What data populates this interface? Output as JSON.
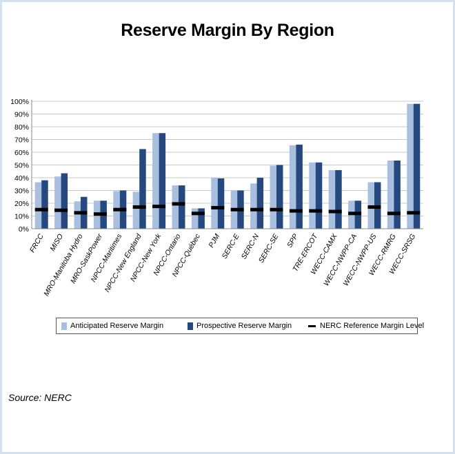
{
  "chart_data": {
    "type": "bar",
    "title": "Reserve Margin By Region",
    "xlabel": "",
    "ylabel": "",
    "ylim": [
      0,
      100
    ],
    "y_ticks": [
      "0%",
      "10%",
      "20%",
      "30%",
      "40%",
      "50%",
      "60%",
      "70%",
      "80%",
      "90%",
      "100%"
    ],
    "grid": true,
    "legend_position": "bottom",
    "categories": [
      "FRCC",
      "MISO",
      "MRO-Manitoba Hydro",
      "MRO-SaskPower",
      "NPCC-Maritimes",
      "NPCC-New England",
      "NPCC-New York",
      "NPCC-Ontario",
      "NPCC-Québec",
      "PJM",
      "SERC-E",
      "SERC-N",
      "SERC-SE",
      "SPP",
      "TRE-ERCOT",
      "WECC-CAMX",
      "WECC-NWPP-CA",
      "WECC-NWPP-US",
      "WECC-RMRG",
      "WECC-SRSG"
    ],
    "series": [
      {
        "name": "Anticipated Reserve Margin",
        "color": "#a9bfe0",
        "values": [
          36.5,
          41,
          21.5,
          22,
          29.5,
          29,
          75,
          34,
          16,
          40,
          30,
          35.5,
          49.5,
          65.5,
          52,
          46,
          22,
          36.5,
          53.5,
          98
        ]
      },
      {
        "name": "Prospective Reserve Margin",
        "color": "#25497f",
        "values": [
          38,
          43.5,
          25,
          22,
          30,
          62.5,
          75,
          34,
          16,
          39.5,
          30,
          40,
          50,
          66,
          52,
          46,
          22,
          36.5,
          53.5,
          98
        ]
      },
      {
        "name": "NERC Reference Margin Level",
        "color": "#000000",
        "marker": "dash",
        "values": [
          15,
          14.5,
          12.5,
          11.5,
          15,
          17,
          17.5,
          19.5,
          12,
          16.5,
          15,
          15,
          15,
          14,
          14,
          13.5,
          12,
          17,
          12,
          12.5
        ]
      }
    ]
  },
  "source": "Source:  NERC"
}
